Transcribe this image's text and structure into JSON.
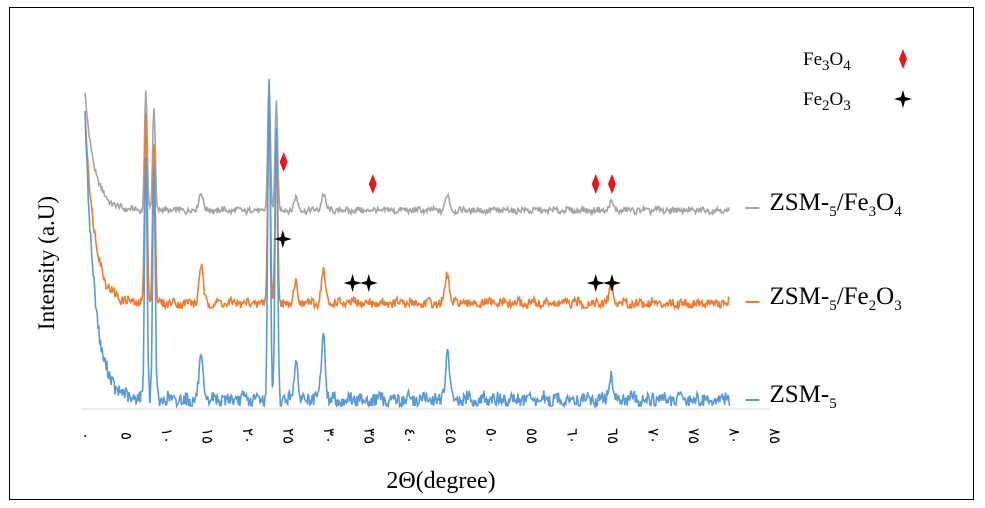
{
  "chart_data": {
    "type": "line",
    "ylabel": "Intensity (a.U)",
    "xlabel": "2Θ(degree)",
    "x_ticks": [
      "٠",
      "٥",
      "١٠",
      "١٥",
      "٢٠",
      "٢٥",
      "٣٠",
      "٣٥",
      "٤٠",
      "٤٥",
      "٥٠",
      "٥٥",
      "٦٠",
      "٦٥",
      "٧٠",
      "٧٥",
      "٨٠",
      "٨٥"
    ],
    "xlim": [
      0,
      85
    ],
    "legend": [
      {
        "label": "Fe3O4",
        "marker": "red-diamond"
      },
      {
        "label": "Fe2O3",
        "marker": "black-star"
      }
    ],
    "series": [
      {
        "name": "ZSM-5/Fe3O4",
        "color": "#a5a5a5",
        "peaks": [
          [
            8,
            0.95
          ],
          [
            9,
            0.82
          ],
          [
            14.8,
            0.15
          ],
          [
            23.2,
            1.0
          ],
          [
            24.1,
            0.85
          ],
          [
            26.5,
            0.1
          ],
          [
            29.9,
            0.13
          ],
          [
            45.2,
            0.12
          ],
          [
            65.4,
            0.06
          ]
        ],
        "markers": [
          {
            "x": 25,
            "type": "red-diamond"
          },
          {
            "x": 36,
            "type": "red-diamond"
          },
          {
            "x": 63.5,
            "type": "red-diamond"
          },
          {
            "x": 65.5,
            "type": "red-diamond"
          }
        ]
      },
      {
        "name": "ZSM-5/Fe2O3",
        "color": "#ed7d31",
        "peaks": [
          [
            8,
            0.9
          ],
          [
            9,
            0.78
          ],
          [
            14.8,
            0.18
          ],
          [
            23.2,
            1.0
          ],
          [
            24.1,
            0.78
          ],
          [
            26.5,
            0.1
          ],
          [
            29.9,
            0.15
          ],
          [
            45.2,
            0.14
          ],
          [
            65.4,
            0.08
          ]
        ],
        "markers": [
          {
            "x": 24.9,
            "type": "black-star"
          },
          {
            "x": 33.5,
            "type": "black-star"
          },
          {
            "x": 35.5,
            "type": "black-star"
          },
          {
            "x": 63.5,
            "type": "black-star"
          },
          {
            "x": 65.5,
            "type": "black-star"
          }
        ]
      },
      {
        "name": "ZSM-5",
        "color": "#5b9bd5",
        "peaks": [
          [
            8,
            0.78
          ],
          [
            9,
            0.72
          ],
          [
            14.8,
            0.12
          ],
          [
            23.2,
            1.0
          ],
          [
            24.1,
            0.85
          ],
          [
            26.5,
            0.12
          ],
          [
            29.9,
            0.2
          ],
          [
            45.2,
            0.15
          ],
          [
            65.4,
            0.08
          ]
        ],
        "markers": []
      }
    ]
  }
}
